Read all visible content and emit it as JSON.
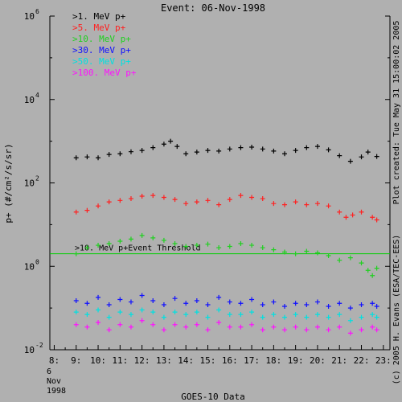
{
  "chart_data": {
    "type": "scatter",
    "title": "Event: 06-Nov-1998",
    "ylabel": "p+ (#/cm²/s/sr)",
    "xlabel": "GOES-10 Data",
    "y_scale": "log",
    "ylim": [
      0.01,
      1000000
    ],
    "xlim": [
      7.8,
      23.3
    ],
    "y_ticks": [
      {
        "value": 0.01,
        "base": "10",
        "exp": "-2"
      },
      {
        "value": 1,
        "base": "10",
        "exp": "0"
      },
      {
        "value": 100,
        "base": "10",
        "exp": "2"
      },
      {
        "value": 10000,
        "base": "10",
        "exp": "4"
      },
      {
        "value": 1000000,
        "base": "10",
        "exp": "6"
      }
    ],
    "x_ticks": [
      {
        "value": 8,
        "label": "8:"
      },
      {
        "value": 9,
        "label": "9:"
      },
      {
        "value": 10,
        "label": "10:"
      },
      {
        "value": 11,
        "label": "11:"
      },
      {
        "value": 12,
        "label": "12:"
      },
      {
        "value": 13,
        "label": "13:"
      },
      {
        "value": 14,
        "label": "14:"
      },
      {
        "value": 15,
        "label": "15:"
      },
      {
        "value": 16,
        "label": "16:"
      },
      {
        "value": 17,
        "label": "17:"
      },
      {
        "value": 18,
        "label": "18:"
      },
      {
        "value": 19,
        "label": "19:"
      },
      {
        "value": 20,
        "label": "20:"
      },
      {
        "value": 21,
        "label": "21:"
      },
      {
        "value": 22,
        "label": "22:"
      },
      {
        "value": 23,
        "label": "23:"
      }
    ],
    "date_lines": [
      "6",
      "Nov",
      "1998"
    ],
    "right_labels": [
      "Plot created: Tue May 31 15:00:02 2005",
      "(c) 2005 H. Evans (ESA/TEC-EES)"
    ],
    "threshold": {
      "value": 2.0,
      "label": ">10. MeV p+Event Threshold",
      "color": "#00d000"
    },
    "legend_position": "top-left",
    "series": [
      {
        "name": ">1. MeV p+",
        "color": "#000000",
        "x": [
          9.0,
          9.5,
          10.0,
          10.5,
          11.0,
          11.5,
          12.0,
          12.5,
          13.0,
          13.3,
          13.6,
          14.0,
          14.5,
          15.0,
          15.5,
          16.0,
          16.5,
          17.0,
          17.5,
          18.0,
          18.5,
          19.0,
          19.5,
          20.0,
          20.5,
          21.0,
          21.5,
          22.0,
          22.3,
          22.7
        ],
        "y": [
          400,
          420,
          400,
          480,
          500,
          560,
          600,
          700,
          850,
          1000,
          750,
          500,
          550,
          600,
          580,
          650,
          700,
          720,
          650,
          580,
          500,
          600,
          700,
          750,
          620,
          450,
          330,
          420,
          550,
          430
        ]
      },
      {
        "name": ">5. MeV p+",
        "color": "#ff2020",
        "x": [
          9.0,
          9.5,
          10.0,
          10.5,
          11.0,
          11.5,
          12.0,
          12.5,
          13.0,
          13.5,
          14.0,
          14.5,
          15.0,
          15.5,
          16.0,
          16.5,
          17.0,
          17.5,
          18.0,
          18.5,
          19.0,
          19.5,
          20.0,
          20.5,
          21.0,
          21.3,
          21.6,
          22.0,
          22.5,
          22.7
        ],
        "y": [
          20,
          22,
          28,
          35,
          38,
          42,
          48,
          50,
          45,
          40,
          32,
          35,
          38,
          30,
          40,
          50,
          45,
          42,
          32,
          30,
          35,
          30,
          32,
          28,
          20,
          15,
          17,
          20,
          15,
          13
        ]
      },
      {
        "name": ">10. MeV p+",
        "color": "#20d020",
        "x": [
          9.0,
          9.5,
          10.0,
          10.5,
          11.0,
          11.5,
          12.0,
          12.5,
          13.0,
          13.5,
          14.0,
          14.5,
          15.0,
          15.5,
          16.0,
          16.5,
          17.0,
          17.5,
          18.0,
          18.5,
          19.0,
          19.5,
          20.0,
          20.5,
          21.0,
          21.5,
          22.0,
          22.3,
          22.5,
          22.7
        ],
        "y": [
          2.0,
          2.8,
          3.2,
          3.5,
          4.0,
          4.5,
          5.5,
          4.8,
          4.2,
          3.5,
          3.0,
          3.2,
          3.4,
          2.8,
          3.0,
          3.5,
          3.2,
          2.8,
          2.5,
          2.2,
          2.0,
          2.3,
          2.1,
          1.8,
          1.4,
          1.6,
          1.2,
          0.8,
          0.6,
          0.9
        ]
      },
      {
        "name": ">30. MeV p+",
        "color": "#1010ff",
        "x": [
          9.0,
          9.5,
          10.0,
          10.5,
          11.0,
          11.5,
          12.0,
          12.5,
          13.0,
          13.5,
          14.0,
          14.5,
          15.0,
          15.5,
          16.0,
          16.5,
          17.0,
          17.5,
          18.0,
          18.5,
          19.0,
          19.5,
          20.0,
          20.5,
          21.0,
          21.5,
          22.0,
          22.5,
          22.7
        ],
        "y": [
          0.15,
          0.13,
          0.18,
          0.12,
          0.16,
          0.14,
          0.2,
          0.15,
          0.12,
          0.17,
          0.13,
          0.15,
          0.12,
          0.18,
          0.14,
          0.13,
          0.16,
          0.12,
          0.14,
          0.11,
          0.13,
          0.12,
          0.14,
          0.11,
          0.13,
          0.1,
          0.12,
          0.13,
          0.11
        ]
      },
      {
        "name": ">50. MeV p+",
        "color": "#00e0e0",
        "x": [
          9.0,
          9.5,
          10.0,
          10.5,
          11.0,
          11.5,
          12.0,
          12.5,
          13.0,
          13.5,
          14.0,
          14.5,
          15.0,
          15.5,
          16.0,
          16.5,
          17.0,
          17.5,
          18.0,
          18.5,
          19.0,
          19.5,
          20.0,
          20.5,
          21.0,
          21.5,
          22.0,
          22.5,
          22.7
        ],
        "y": [
          0.08,
          0.07,
          0.09,
          0.06,
          0.08,
          0.07,
          0.09,
          0.08,
          0.06,
          0.08,
          0.07,
          0.08,
          0.06,
          0.09,
          0.07,
          0.07,
          0.08,
          0.06,
          0.07,
          0.06,
          0.07,
          0.06,
          0.07,
          0.06,
          0.07,
          0.05,
          0.06,
          0.07,
          0.06
        ]
      },
      {
        "name": ">100. MeV p+",
        "color": "#ff10ff",
        "x": [
          9.0,
          9.5,
          10.0,
          10.5,
          11.0,
          11.5,
          12.0,
          12.5,
          13.0,
          13.5,
          14.0,
          14.5,
          15.0,
          15.5,
          16.0,
          16.5,
          17.0,
          17.5,
          18.0,
          18.5,
          19.0,
          19.5,
          20.0,
          20.5,
          21.0,
          21.5,
          22.0,
          22.5,
          22.7
        ],
        "y": [
          0.04,
          0.035,
          0.045,
          0.03,
          0.04,
          0.035,
          0.05,
          0.04,
          0.03,
          0.04,
          0.035,
          0.04,
          0.03,
          0.045,
          0.035,
          0.035,
          0.04,
          0.03,
          0.035,
          0.03,
          0.035,
          0.03,
          0.035,
          0.03,
          0.035,
          0.025,
          0.03,
          0.035,
          0.03
        ]
      }
    ]
  }
}
